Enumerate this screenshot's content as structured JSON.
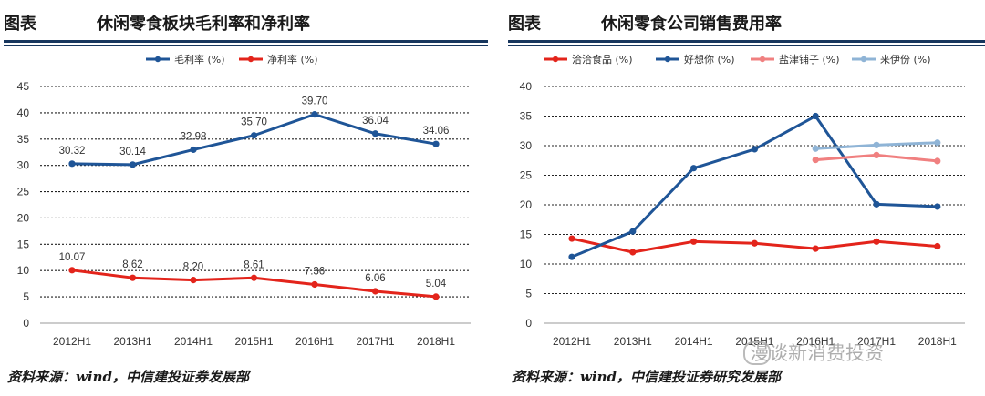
{
  "left": {
    "label": "图表",
    "title": "休闲零食板块毛利率和净利率",
    "source": "资料来源：wind，中信建投证券发展部"
  },
  "right": {
    "label": "图表",
    "title": "休闲零食公司销售费用率",
    "source": "资料来源：wind，中信建投证券研究发展部"
  },
  "watermark": "漫谈新消费投资",
  "chart_data": [
    {
      "type": "line",
      "title": "休闲零食板块毛利率和净利率",
      "categories": [
        "2012H1",
        "2013H1",
        "2014H1",
        "2015H1",
        "2016H1",
        "2017H1",
        "2018H1"
      ],
      "ylim": [
        0,
        45
      ],
      "yticks": [
        0,
        5,
        10,
        15,
        20,
        25,
        30,
        35,
        40,
        45
      ],
      "grid": true,
      "legend": "top-center",
      "series": [
        {
          "name": "毛利率 (%)",
          "color": "#1f5597",
          "values": [
            30.32,
            30.14,
            32.98,
            35.7,
            39.7,
            36.04,
            34.06
          ],
          "labels": [
            "30.32",
            "30.14",
            "32.98",
            "35.70",
            "39.70",
            "36.04",
            "34.06"
          ]
        },
        {
          "name": "净利率 (%)",
          "color": "#e3241b",
          "values": [
            10.07,
            8.62,
            8.2,
            8.61,
            7.36,
            6.06,
            5.04
          ],
          "labels": [
            "10.07",
            "8.62",
            "8.20",
            "8.61",
            "7.36",
            "6.06",
            "5.04"
          ]
        }
      ]
    },
    {
      "type": "line",
      "title": "休闲零食公司销售费用率",
      "categories": [
        "2012H1",
        "2013H1",
        "2014H1",
        "2015H1",
        "2016H1",
        "2017H1",
        "2018H1"
      ],
      "ylim": [
        0,
        40
      ],
      "yticks": [
        0,
        5,
        10,
        15,
        20,
        25,
        30,
        35,
        40
      ],
      "grid": true,
      "legend": "top",
      "series": [
        {
          "name": "洽洽食品 (%)",
          "color": "#e3241b",
          "values": [
            14.3,
            12.0,
            13.8,
            13.5,
            12.6,
            13.8,
            13.0
          ]
        },
        {
          "name": "好想你 (%)",
          "color": "#1f5597",
          "values": [
            11.2,
            15.5,
            26.2,
            29.4,
            35.0,
            20.1,
            19.7
          ]
        },
        {
          "name": "盐津铺子 (%)",
          "color": "#f08080",
          "values": [
            null,
            null,
            null,
            null,
            27.6,
            28.4,
            27.4
          ]
        },
        {
          "name": "来伊份 (%)",
          "color": "#8fb4d6",
          "values": [
            null,
            null,
            null,
            null,
            29.5,
            30.1,
            30.5
          ]
        }
      ]
    }
  ]
}
